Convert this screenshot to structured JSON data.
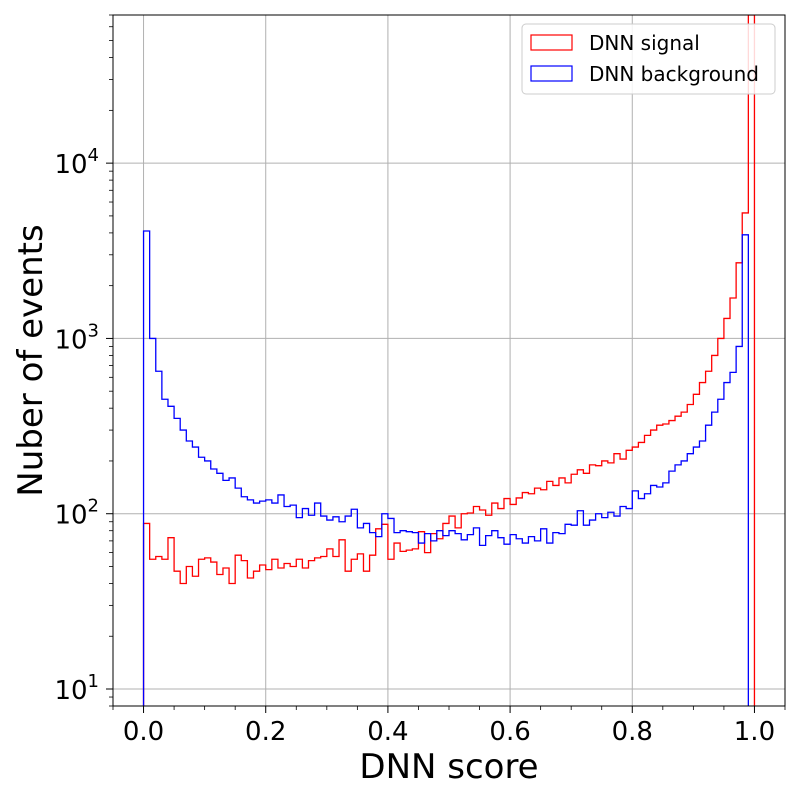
{
  "chart_data": {
    "type": "histogram",
    "xlabel": "DNN score",
    "ylabel": "Nuber of events",
    "xlim": [
      -0.05,
      1.05
    ],
    "ylim": [
      8,
      70000
    ],
    "yscale": "log",
    "grid": true,
    "legend_position": "top-right",
    "x_ticks": [
      "0.0",
      "0.2",
      "0.4",
      "0.6",
      "0.8",
      "1.0"
    ],
    "x_tick_values": [
      0.0,
      0.2,
      0.4,
      0.6,
      0.8,
      1.0
    ],
    "y_ticks": [
      {
        "value": 10,
        "base": "10",
        "exp": "1"
      },
      {
        "value": 100,
        "base": "10",
        "exp": "2"
      },
      {
        "value": 1000,
        "base": "10",
        "exp": "3"
      },
      {
        "value": 10000,
        "base": "10",
        "exp": "4"
      }
    ],
    "bin_edges_range": [
      0.0,
      1.0
    ],
    "n_bins": 100,
    "series": [
      {
        "name": "DNN signal",
        "color": "#ff0000",
        "values": [
          88,
          55,
          57,
          55,
          73,
          47,
          40,
          50,
          44,
          55,
          56,
          53,
          45,
          49,
          40,
          58,
          54,
          43,
          47,
          51,
          48,
          55,
          49,
          52,
          50,
          55,
          49,
          54,
          56,
          57,
          63,
          57,
          71,
          47,
          55,
          59,
          47,
          58,
          82,
          87,
          55,
          68,
          61,
          62,
          63,
          79,
          60,
          77,
          72,
          88,
          97,
          83,
          100,
          101,
          110,
          105,
          98,
          115,
          107,
          122,
          113,
          123,
          132,
          130,
          140,
          137,
          153,
          145,
          160,
          150,
          168,
          178,
          170,
          190,
          188,
          200,
          195,
          220,
          205,
          230,
          240,
          255,
          280,
          300,
          320,
          325,
          340,
          360,
          380,
          420,
          480,
          560,
          650,
          800,
          1000,
          1300,
          1700,
          2700,
          5200,
          70000
        ]
      },
      {
        "name": "DNN background",
        "color": "#0000ff",
        "values": [
          4100,
          1000,
          650,
          450,
          410,
          350,
          300,
          260,
          240,
          210,
          200,
          180,
          170,
          155,
          160,
          140,
          125,
          120,
          115,
          118,
          120,
          115,
          128,
          110,
          112,
          95,
          107,
          98,
          115,
          97,
          92,
          96,
          90,
          97,
          106,
          83,
          88,
          78,
          74,
          100,
          94,
          78,
          80,
          79,
          78,
          68,
          77,
          70,
          80,
          75,
          80,
          77,
          71,
          76,
          83,
          66,
          75,
          80,
          73,
          67,
          76,
          72,
          68,
          74,
          70,
          82,
          68,
          78,
          77,
          87,
          86,
          104,
          86,
          92,
          100,
          95,
          102,
          97,
          110,
          107,
          135,
          122,
          130,
          145,
          142,
          150,
          175,
          190,
          200,
          220,
          240,
          260,
          320,
          380,
          450,
          560,
          640,
          900,
          3900,
          0
        ]
      }
    ]
  }
}
